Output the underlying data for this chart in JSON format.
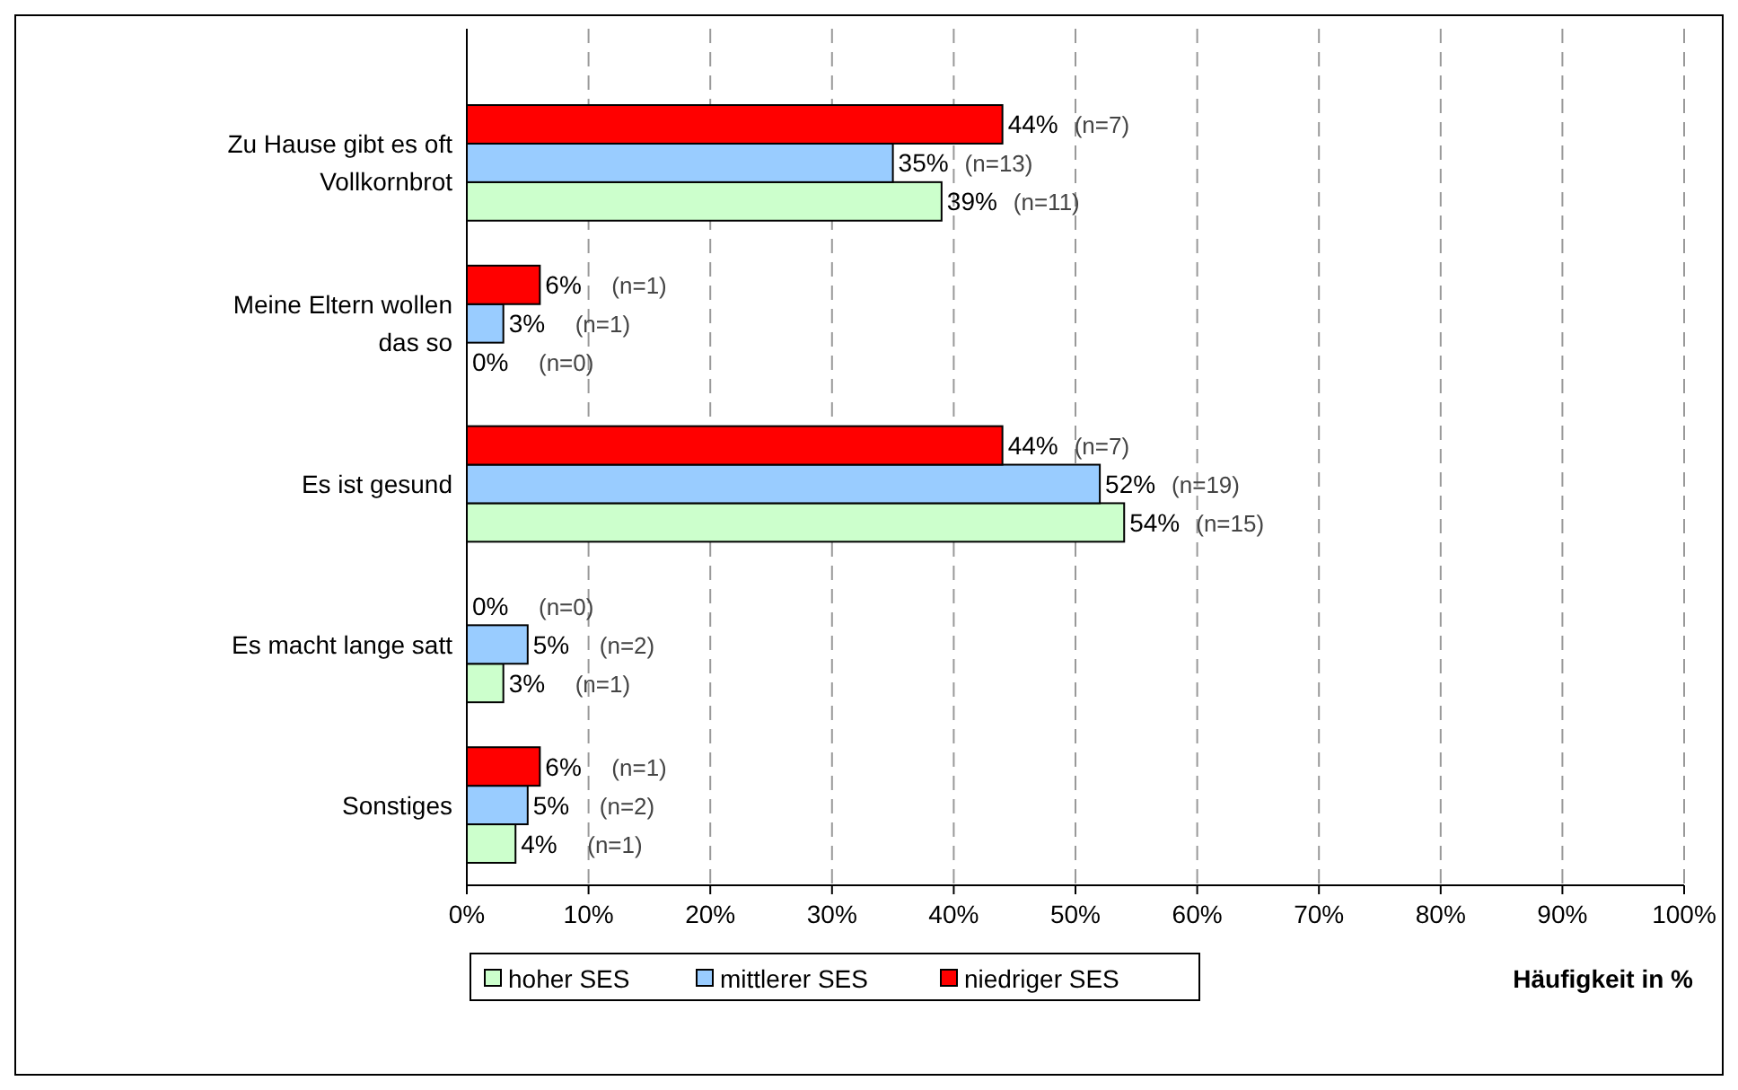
{
  "chart_data": {
    "type": "bar",
    "orientation": "horizontal",
    "xlabel": "Häufigkeit in %",
    "categories": [
      "Zu Hause gibt es oft Vollkornbrot",
      "Meine Eltern wollen das so",
      "Es ist gesund",
      "Es macht lange satt",
      "Sonstiges"
    ],
    "series": [
      {
        "name": "hoher SES",
        "color": "#ccffcc",
        "values": [
          39,
          0,
          54,
          3,
          4
        ]
      },
      {
        "name": "mittlerer SES",
        "color": "#99ccff",
        "values": [
          35,
          3,
          52,
          5,
          5
        ]
      },
      {
        "name": "niedriger SES",
        "color": "#ff0000",
        "values": [
          44,
          6,
          44,
          0,
          6
        ]
      }
    ],
    "xlim": [
      0,
      100
    ],
    "xticks": [
      {
        "value": 0,
        "label": "0%"
      },
      {
        "value": 10,
        "label": "10%"
      },
      {
        "value": 20,
        "label": "20%"
      },
      {
        "value": 30,
        "label": "30%"
      },
      {
        "value": 40,
        "label": "40%"
      },
      {
        "value": 50,
        "label": "50%"
      },
      {
        "value": 60,
        "label": "60%"
      },
      {
        "value": 70,
        "label": "70%"
      },
      {
        "value": 80,
        "label": "80%"
      },
      {
        "value": 90,
        "label": "90%"
      },
      {
        "value": 100,
        "label": "100%"
      }
    ],
    "grid": "x",
    "legend": "bottom",
    "value_labels": [
      [
        "39%",
        "0%",
        "54%",
        "3%",
        "4%"
      ],
      [
        "35%",
        "3%",
        "52%",
        "5%",
        "5%"
      ],
      [
        "44%",
        "6%",
        "44%",
        "0%",
        "6%"
      ]
    ],
    "annotations": [
      "(n=11)",
      "(n=13)",
      "(n=7)",
      "(n=0)",
      "(n=1)",
      "(n=1)",
      "(n=15)",
      "(n=19)",
      "(n=7)",
      "(n=1)",
      "(n=2)",
      "(n=0)",
      "(n=1)",
      "(n=2)",
      "(n=1)"
    ]
  }
}
